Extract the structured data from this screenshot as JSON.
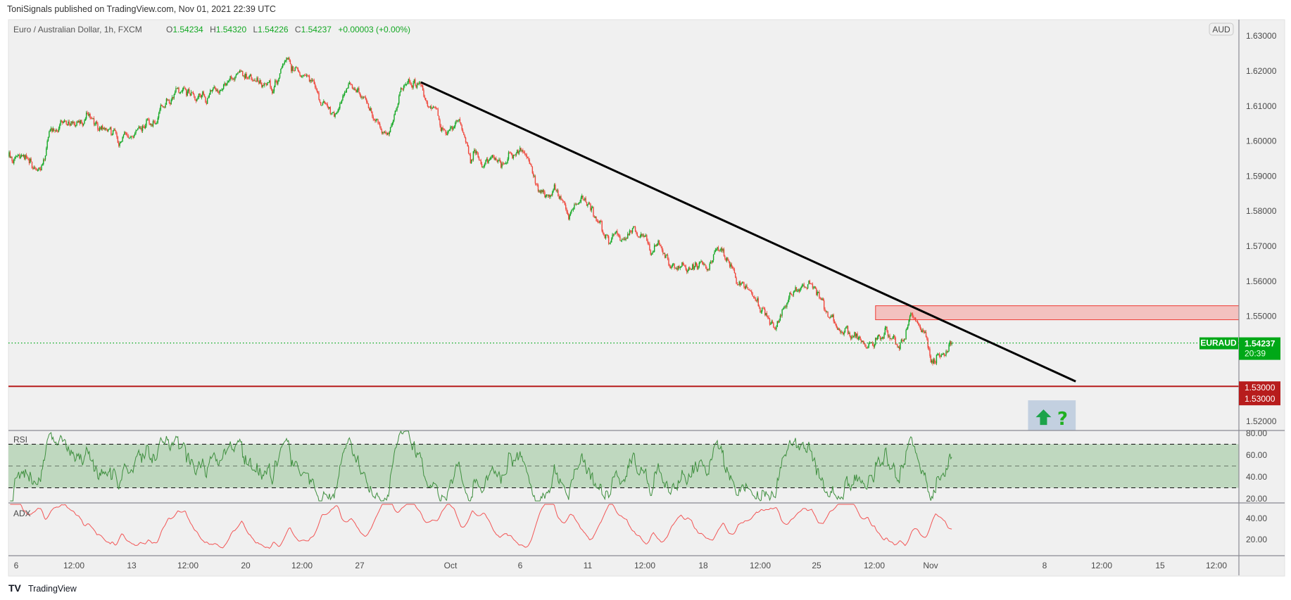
{
  "header": {
    "publisher_line": "ToniSignals published on TradingView.com, Nov 01, 2021 22:39 UTC"
  },
  "legend": {
    "symbol": "Euro / Australian Dollar, 1h, FXCM",
    "o_label": "O",
    "o": "1.54234",
    "h_label": "H",
    "h": "1.54320",
    "l_label": "L",
    "l": "1.54226",
    "c_label": "C",
    "c": "1.54237",
    "change": "+0.00003 (+0.00%)"
  },
  "currency_button": "AUD",
  "footer": {
    "brand": "TradingView"
  },
  "colors": {
    "up": "#13a823",
    "down": "#f0453a",
    "rsi": "#3f8f3f",
    "rsi_band": "#bfd8bf",
    "adx": "#f25555",
    "trendline": "#000000",
    "support": "#b71c1c",
    "zone_fill": "#f3c1bf",
    "zone_border": "#ef3b33",
    "last_price": "#00a817"
  },
  "chart_data": {
    "type": "candlestick",
    "symbol": "EURAUD",
    "interval": "1h",
    "bars": 990,
    "price_range": [
      1.5174,
      1.6345
    ],
    "price_ticks": [
      "1.63000",
      "1.62000",
      "1.61000",
      "1.60000",
      "1.59000",
      "1.58000",
      "1.57000",
      "1.56000",
      "1.55000",
      "1.52000"
    ],
    "anchors": [
      [
        0,
        1.5956
      ],
      [
        34,
        1.5932
      ],
      [
        43,
        1.6038
      ],
      [
        86,
        1.6073
      ],
      [
        116,
        1.6003
      ],
      [
        134,
        1.605
      ],
      [
        151,
        1.6038
      ],
      [
        177,
        1.6155
      ],
      [
        207,
        1.612
      ],
      [
        220,
        1.6155
      ],
      [
        250,
        1.6191
      ],
      [
        281,
        1.6144
      ],
      [
        289,
        1.6226
      ],
      [
        319,
        1.6167
      ],
      [
        341,
        1.6073
      ],
      [
        358,
        1.6167
      ],
      [
        397,
        1.6015
      ],
      [
        410,
        1.6144
      ],
      [
        432,
        1.6167
      ],
      [
        458,
        1.6026
      ],
      [
        471,
        1.6085
      ],
      [
        484,
        1.5956
      ],
      [
        518,
        1.5944
      ],
      [
        540,
        1.5979
      ],
      [
        553,
        1.5885
      ],
      [
        587,
        1.5791
      ],
      [
        605,
        1.5838
      ],
      [
        630,
        1.5709
      ],
      [
        656,
        1.5733
      ],
      [
        682,
        1.5686
      ],
      [
        700,
        1.5639
      ],
      [
        734,
        1.5651
      ],
      [
        743,
        1.5709
      ],
      [
        760,
        1.5627
      ],
      [
        795,
        1.551
      ],
      [
        803,
        1.5475
      ],
      [
        820,
        1.558
      ],
      [
        842,
        1.558
      ],
      [
        855,
        1.551
      ],
      [
        881,
        1.5439
      ],
      [
        898,
        1.5416
      ],
      [
        920,
        1.5475
      ],
      [
        933,
        1.5416
      ],
      [
        946,
        1.551
      ],
      [
        959,
        1.5463
      ],
      [
        967,
        1.5369
      ],
      [
        989,
        1.54237
      ]
    ],
    "time_labels": [
      "6",
      "12:00",
      "13",
      "12:00",
      "20",
      "12:00",
      "27",
      "Oct",
      "6",
      "11",
      "12:00",
      "18",
      "12:00",
      "25",
      "12:00",
      "Nov",
      "8",
      "12:00",
      "15",
      "12:00"
    ],
    "last_price": {
      "symbol_label": "EURAUD",
      "price": "1.54237",
      "countdown": "20:39",
      "value": 1.54237
    },
    "support_line": {
      "value": 1.53,
      "label_top": "1.53000",
      "label_bottom": "1.53000"
    },
    "resistance_zone": {
      "from_bar": 909,
      "low": 1.549,
      "high": 1.553
    },
    "trendline": {
      "from": {
        "bar": 432,
        "price": 1.6168
      },
      "to": {
        "bar": 1119,
        "price": 1.5314
      }
    },
    "signal_box": {
      "from_bar": 1069,
      "to_bar": 1119,
      "top_price": 1.526,
      "arrow": "up-arrow-icon",
      "text": "?"
    },
    "rsi": {
      "title": "RSI",
      "period": 14,
      "levels": [
        70,
        50,
        30
      ],
      "ticks": [
        "80.00",
        "60.00",
        "40.00",
        "20.00"
      ],
      "range": [
        17.5,
        84
      ]
    },
    "adx": {
      "title": "ADX",
      "period": 14,
      "ticks": [
        "40.00",
        "20.00"
      ],
      "range": [
        4,
        53
      ]
    }
  }
}
